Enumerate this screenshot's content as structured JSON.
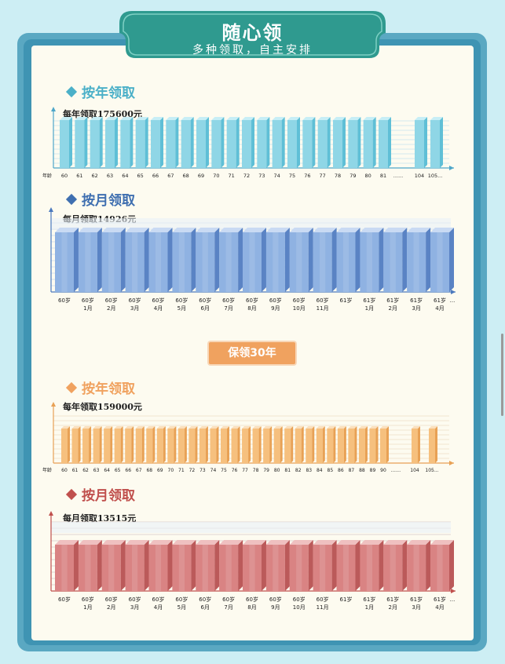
{
  "banner": {
    "title": "随心领",
    "subtitle": "多种领取，自主安排"
  },
  "sections": [
    {
      "heading": "按年领取",
      "amount_label": "每年领取175600元",
      "color": "#4bb0c8"
    },
    {
      "heading": "按月领取",
      "amount_label": "每月领取14926元",
      "color": "#3f6fb0"
    },
    {
      "heading": "按年领取",
      "amount_label": "每年领取159000元",
      "color": "#f0a25f"
    },
    {
      "heading": "按月领取",
      "amount_label": "每月领取13515元",
      "color": "#c0504d"
    }
  ],
  "guarantee_label": "保领30年",
  "chart_data": [
    {
      "type": "bar",
      "title": "每年领取175600元",
      "xlabel": "年龄",
      "categories": [
        "60",
        "61",
        "62",
        "63",
        "64",
        "65",
        "66",
        "67",
        "68",
        "69",
        "70",
        "71",
        "72",
        "73",
        "74",
        "75",
        "76",
        "77",
        "78",
        "79",
        "80",
        "81",
        "104",
        "105..."
      ],
      "ellipsis_after": "81",
      "ellipsis_text": "......",
      "values": [
        175600,
        175600,
        175600,
        175600,
        175600,
        175600,
        175600,
        175600,
        175600,
        175600,
        175600,
        175600,
        175600,
        175600,
        175600,
        175600,
        175600,
        175600,
        175600,
        175600,
        175600,
        175600,
        175600,
        175600
      ],
      "colors": {
        "front": "#8fd6e6",
        "side": "#5fbfd6",
        "top": "#c7eef6",
        "axis": "#4ea6c9",
        "grid": "#c4e3ee"
      }
    },
    {
      "type": "bar",
      "title": "每月领取14926元",
      "categories": [
        [
          "60岁",
          ""
        ],
        [
          "60岁",
          "1月"
        ],
        [
          "60岁",
          "2月"
        ],
        [
          "60岁",
          "3月"
        ],
        [
          "60岁",
          "4月"
        ],
        [
          "60岁",
          "5月"
        ],
        [
          "60岁",
          "6月"
        ],
        [
          "60岁",
          "7月"
        ],
        [
          "60岁",
          "8月"
        ],
        [
          "60岁",
          "9月"
        ],
        [
          "60岁",
          "10月"
        ],
        [
          "60岁",
          "11月"
        ],
        [
          "61岁",
          ""
        ],
        [
          "61岁",
          "1月"
        ],
        [
          "61岁",
          "2月"
        ],
        [
          "61岁",
          "3月"
        ],
        [
          "61岁",
          "4月"
        ]
      ],
      "trailing_text": "...",
      "values": [
        14926,
        14926,
        14926,
        14926,
        14926,
        14926,
        14926,
        14926,
        14926,
        14926,
        14926,
        14926,
        14926,
        14926,
        14926,
        14926,
        14926
      ],
      "colors": {
        "front": "#8fb2e2",
        "side": "#5a83c4",
        "top": "#c9daf3",
        "axis": "#4b79bd",
        "grid": "#c7d7ee"
      }
    },
    {
      "type": "bar",
      "title": "每年领取159000元",
      "xlabel": "年龄",
      "categories": [
        "60",
        "61",
        "62",
        "63",
        "64",
        "65",
        "66",
        "67",
        "68",
        "69",
        "70",
        "71",
        "72",
        "73",
        "74",
        "75",
        "76",
        "77",
        "78",
        "79",
        "80",
        "81",
        "82",
        "83",
        "84",
        "85",
        "86",
        "87",
        "88",
        "89",
        "90",
        "104",
        "105..."
      ],
      "ellipsis_after": "90",
      "ellipsis_text": "......",
      "values": [
        159000,
        159000,
        159000,
        159000,
        159000,
        159000,
        159000,
        159000,
        159000,
        159000,
        159000,
        159000,
        159000,
        159000,
        159000,
        159000,
        159000,
        159000,
        159000,
        159000,
        159000,
        159000,
        159000,
        159000,
        159000,
        159000,
        159000,
        159000,
        159000,
        159000,
        159000,
        159000,
        159000
      ],
      "colors": {
        "front": "#f6c07e",
        "side": "#e8a155",
        "top": "#fbe0bd",
        "axis": "#e8a155",
        "grid": "#ecdcc4"
      }
    },
    {
      "type": "bar",
      "title": "每月领取13515元",
      "categories": [
        [
          "60岁",
          ""
        ],
        [
          "60岁",
          "1月"
        ],
        [
          "60岁",
          "2月"
        ],
        [
          "60岁",
          "3月"
        ],
        [
          "60岁",
          "4月"
        ],
        [
          "60岁",
          "5月"
        ],
        [
          "60岁",
          "6月"
        ],
        [
          "60岁",
          "7月"
        ],
        [
          "60岁",
          "8月"
        ],
        [
          "60岁",
          "9月"
        ],
        [
          "60岁",
          "10月"
        ],
        [
          "60岁",
          "11月"
        ],
        [
          "61岁",
          ""
        ],
        [
          "61岁",
          "1月"
        ],
        [
          "61岁",
          "2月"
        ],
        [
          "61岁",
          "3月"
        ],
        [
          "61岁",
          "4月"
        ]
      ],
      "trailing_text": "...",
      "values": [
        13515,
        13515,
        13515,
        13515,
        13515,
        13515,
        13515,
        13515,
        13515,
        13515,
        13515,
        13515,
        13515,
        13515,
        13515,
        13515,
        13515
      ],
      "colors": {
        "front": "#d98383",
        "side": "#bb5a5a",
        "top": "#efc0c0",
        "axis": "#c0504d",
        "grid": "#d6c8c8"
      }
    }
  ]
}
